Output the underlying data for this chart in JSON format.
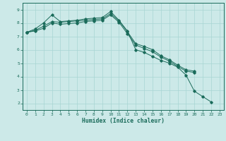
{
  "x": [
    0,
    1,
    2,
    3,
    4,
    5,
    6,
    7,
    8,
    9,
    10,
    11,
    12,
    13,
    14,
    15,
    16,
    17,
    18,
    19,
    20,
    21,
    22,
    23
  ],
  "line1": [
    7.3,
    7.55,
    8.0,
    8.6,
    8.1,
    8.15,
    8.2,
    8.3,
    8.35,
    8.4,
    8.85,
    8.2,
    7.4,
    6.0,
    5.8,
    5.5,
    5.2,
    5.0,
    4.7,
    4.1,
    2.9,
    2.5,
    2.1,
    null
  ],
  "line2": [
    7.3,
    7.45,
    7.75,
    8.1,
    8.05,
    8.1,
    8.15,
    8.2,
    8.25,
    8.3,
    8.7,
    8.15,
    7.35,
    6.45,
    6.25,
    6.0,
    5.55,
    5.25,
    4.85,
    4.5,
    4.4,
    null,
    null,
    null
  ],
  "line3": [
    7.3,
    7.4,
    7.6,
    8.0,
    7.9,
    7.95,
    8.0,
    8.1,
    8.15,
    8.2,
    8.6,
    8.05,
    7.2,
    6.35,
    6.1,
    5.85,
    5.45,
    5.15,
    4.75,
    4.4,
    4.3,
    null,
    null,
    null
  ],
  "bg_color": "#cce9e8",
  "grid_color": "#a8d5d3",
  "line_color": "#1a6b5a",
  "xlabel": "Humidex (Indice chaleur)",
  "ylim": [
    1.5,
    9.5
  ],
  "xlim": [
    -0.5,
    23.5
  ],
  "yticks": [
    2,
    3,
    4,
    5,
    6,
    7,
    8,
    9
  ],
  "xticks": [
    0,
    1,
    2,
    3,
    4,
    5,
    6,
    7,
    8,
    9,
    10,
    11,
    12,
    13,
    14,
    15,
    16,
    17,
    18,
    19,
    20,
    21,
    22,
    23
  ]
}
